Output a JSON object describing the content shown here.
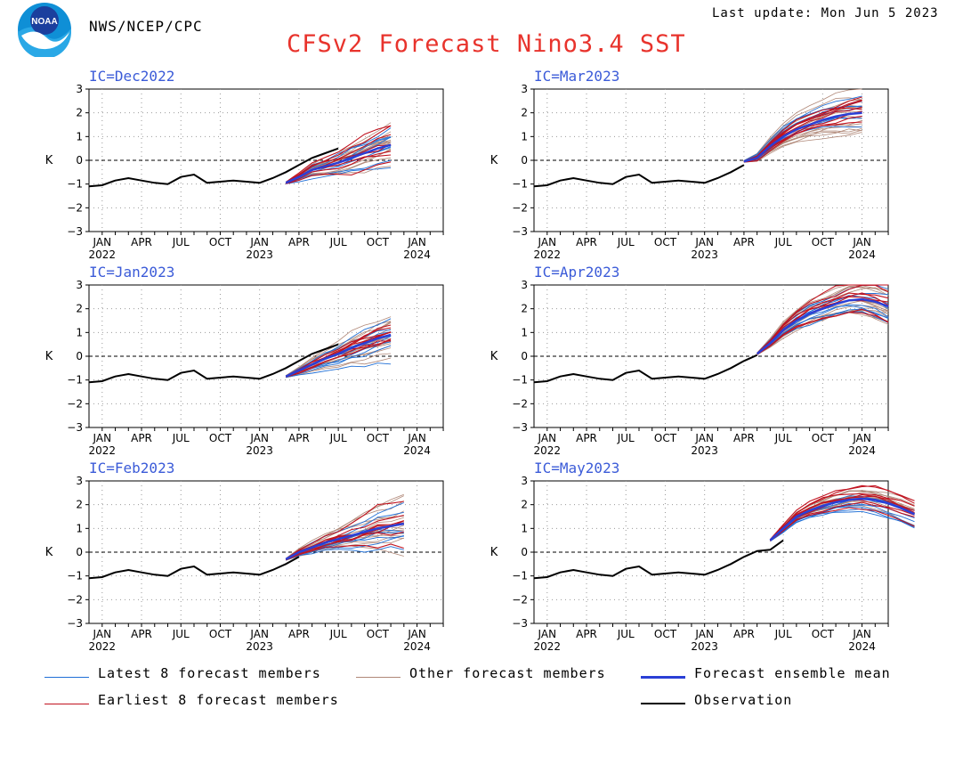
{
  "header": {
    "agency": "NWS/NCEP/CPC",
    "last_update": "Last update: Mon Jun 5 2023",
    "title": "CFSv2 Forecast Nino3.4 SST",
    "logo_text": "NOAA"
  },
  "colors": {
    "title": "#e8332c",
    "panel_label": "#3b5bd8",
    "latest_members": "#1f6fd6",
    "other_members": "#b08878",
    "earliest_members": "#c1121f",
    "ensemble_mean": "#2a3fd6",
    "observation": "#000000"
  },
  "legend": [
    {
      "key": "latest",
      "label": "Latest 8 forecast members"
    },
    {
      "key": "other",
      "label": "Other forecast members"
    },
    {
      "key": "mean",
      "label": "Forecast ensemble mean"
    },
    {
      "key": "earliest",
      "label": "Earliest 8 forecast members"
    },
    {
      "key": "obs",
      "label": "Observation"
    }
  ],
  "chart_data": [
    {
      "type": "line",
      "ic": "IC=Dec2022",
      "ylabel": "K",
      "ylim": [
        -3,
        3
      ],
      "month_labels": [
        "JAN",
        "APR",
        "JUL",
        "OCT",
        "JAN",
        "APR",
        "JUL",
        "OCT",
        "JAN"
      ],
      "year_labels": [
        "2022",
        "2023",
        "2024"
      ],
      "observation": [
        -1.05,
        -0.85,
        -0.75,
        -0.85,
        -0.95,
        -1.0,
        -0.7,
        -0.6,
        -0.95,
        -0.9,
        -0.85,
        -0.9,
        -0.95,
        -0.75,
        -0.5,
        -0.2,
        0.1,
        0.3,
        0.5
      ],
      "mean": [
        -0.95,
        -0.7,
        -0.4,
        -0.25,
        -0.1,
        0.1,
        0.3,
        0.5,
        0.65
      ],
      "spread": [
        0.05,
        0.25,
        0.4,
        0.5,
        0.6,
        0.75,
        0.9,
        1.0,
        1.1
      ]
    },
    {
      "type": "line",
      "ic": "IC=Mar2023",
      "ylabel": "K",
      "ylim": [
        -3,
        3
      ],
      "month_labels": [
        "JAN",
        "APR",
        "JUL",
        "OCT",
        "JAN",
        "APR",
        "JUL",
        "OCT",
        "JAN"
      ],
      "year_labels": [
        "2022",
        "2023",
        "2024"
      ],
      "observation": [
        -1.05,
        -0.85,
        -0.75,
        -0.85,
        -0.95,
        -1.0,
        -0.7,
        -0.6,
        -0.95,
        -0.9,
        -0.85,
        -0.9,
        -0.95,
        -0.75,
        -0.5,
        -0.2
      ],
      "mean": [
        -0.05,
        0.1,
        0.6,
        1.0,
        1.3,
        1.5,
        1.7,
        1.85,
        1.95,
        2.0
      ],
      "spread": [
        0.05,
        0.2,
        0.35,
        0.45,
        0.55,
        0.6,
        0.7,
        0.75,
        0.8,
        0.8
      ]
    },
    {
      "type": "line",
      "ic": "IC=Jan2023",
      "ylabel": "K",
      "ylim": [
        -3,
        3
      ],
      "month_labels": [
        "JAN",
        "APR",
        "JUL",
        "OCT",
        "JAN",
        "APR",
        "JUL",
        "OCT",
        "JAN"
      ],
      "year_labels": [
        "2022",
        "2023",
        "2024"
      ],
      "observation": [
        -1.05,
        -0.85,
        -0.75,
        -0.85,
        -0.95,
        -1.0,
        -0.7,
        -0.6,
        -0.95,
        -0.9,
        -0.85,
        -0.9,
        -0.95,
        -0.75,
        -0.5,
        -0.2,
        0.1,
        0.3,
        0.5
      ],
      "mean": [
        -0.85,
        -0.6,
        -0.35,
        -0.1,
        0.1,
        0.35,
        0.55,
        0.75,
        0.9
      ],
      "spread": [
        0.05,
        0.2,
        0.35,
        0.45,
        0.55,
        0.65,
        0.8,
        0.9,
        1.0
      ]
    },
    {
      "type": "line",
      "ic": "IC=Apr2023",
      "ylabel": "K",
      "ylim": [
        -3,
        3
      ],
      "month_labels": [
        "JAN",
        "APR",
        "JUL",
        "OCT",
        "JAN",
        "APR",
        "JUL",
        "OCT",
        "JAN"
      ],
      "year_labels": [
        "2022",
        "2023",
        "2024"
      ],
      "observation": [
        -1.05,
        -0.85,
        -0.75,
        -0.85,
        -0.95,
        -1.0,
        -0.7,
        -0.6,
        -0.95,
        -0.9,
        -0.85,
        -0.9,
        -0.95,
        -0.75,
        -0.5,
        -0.2,
        0.05
      ],
      "mean": [
        0.1,
        0.55,
        1.1,
        1.5,
        1.8,
        2.0,
        2.2,
        2.35,
        2.4,
        2.3,
        2.1
      ],
      "spread": [
        0.05,
        0.2,
        0.35,
        0.45,
        0.55,
        0.6,
        0.65,
        0.7,
        0.75,
        0.8,
        0.85
      ]
    },
    {
      "type": "line",
      "ic": "IC=Feb2023",
      "ylabel": "K",
      "ylim": [
        -3,
        3
      ],
      "month_labels": [
        "JAN",
        "APR",
        "JUL",
        "OCT",
        "JAN",
        "APR",
        "JUL",
        "OCT",
        "JAN"
      ],
      "year_labels": [
        "2022",
        "2023",
        "2024"
      ],
      "observation": [
        -1.05,
        -0.85,
        -0.75,
        -0.85,
        -0.95,
        -1.0,
        -0.7,
        -0.6,
        -0.95,
        -0.9,
        -0.85,
        -0.9,
        -0.95,
        -0.75,
        -0.5,
        -0.2
      ],
      "mean": [
        -0.3,
        0.0,
        0.2,
        0.4,
        0.55,
        0.7,
        0.85,
        1.0,
        1.1,
        1.2
      ],
      "spread": [
        0.05,
        0.2,
        0.35,
        0.45,
        0.55,
        0.7,
        0.85,
        1.0,
        1.1,
        1.2
      ]
    },
    {
      "type": "line",
      "ic": "IC=May2023",
      "ylabel": "K",
      "ylim": [
        -3,
        3
      ],
      "month_labels": [
        "JAN",
        "APR",
        "JUL",
        "OCT",
        "JAN",
        "APR",
        "JUL",
        "OCT",
        "JAN"
      ],
      "year_labels": [
        "2022",
        "2023",
        "2024"
      ],
      "observation": [
        -1.05,
        -0.85,
        -0.75,
        -0.85,
        -0.95,
        -1.0,
        -0.7,
        -0.6,
        -0.95,
        -0.9,
        -0.85,
        -0.9,
        -0.95,
        -0.75,
        -0.5,
        -0.2,
        0.05,
        0.1,
        0.5
      ],
      "mean": [
        0.5,
        1.0,
        1.5,
        1.75,
        1.95,
        2.1,
        2.2,
        2.25,
        2.2,
        2.05,
        1.85,
        1.6
      ],
      "spread": [
        0.05,
        0.2,
        0.3,
        0.4,
        0.45,
        0.5,
        0.55,
        0.6,
        0.6,
        0.6,
        0.6,
        0.6
      ]
    }
  ]
}
